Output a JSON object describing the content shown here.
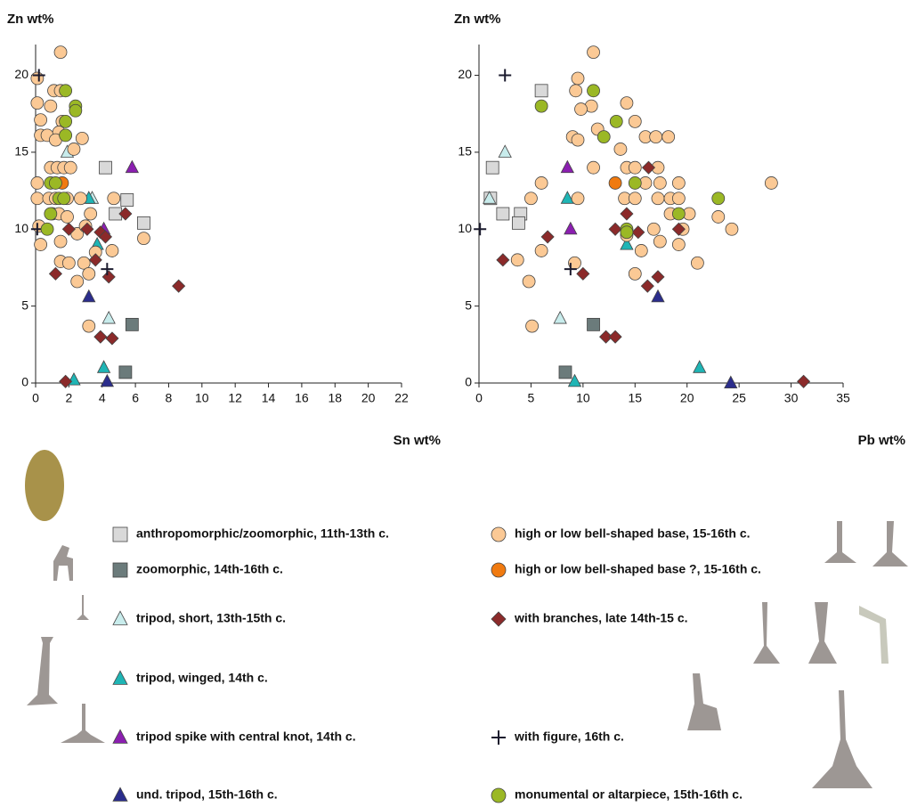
{
  "chart_data": [
    {
      "type": "scatter",
      "x_label": "Sn wt%",
      "y_label": "Zn wt%",
      "xlim": [
        0,
        22
      ],
      "ylim": [
        0,
        22
      ],
      "xticks": [
        0,
        2,
        4,
        6,
        8,
        10,
        12,
        14,
        16,
        18,
        20,
        22
      ],
      "yticks": [
        0,
        5,
        10,
        15,
        20
      ],
      "series": [
        {
          "name": "anthropomorphic/zoomorphic, 11th-13th c.",
          "color": "#d9d9d9",
          "marker": "square",
          "x": [
            4.2,
            5.5,
            4.8,
            6.5
          ],
          "values": [
            14,
            11.9,
            11,
            10.4
          ]
        },
        {
          "name": "zoomorphic, 14th-16th c.",
          "color": "#6b7b7b",
          "marker": "square",
          "x": [
            5.8,
            5.4
          ],
          "values": [
            3.8,
            0.7
          ]
        },
        {
          "name": "tripod, short, 13th-15th c.",
          "color": "#c8ecec",
          "marker": "triangle",
          "x": [
            1.9,
            3.4,
            4.4
          ],
          "values": [
            15,
            12,
            4.2
          ]
        },
        {
          "name": "tripod, winged, 14th c.",
          "color": "#1fb5b5",
          "marker": "triangle",
          "x": [
            3.2,
            3.7,
            4.1,
            2.3
          ],
          "values": [
            12,
            9,
            1,
            0.2
          ]
        },
        {
          "name": "tripod spike with central knot, 14th c.",
          "color": "#8b1fb0",
          "marker": "triangle",
          "x": [
            5.8,
            4.1
          ],
          "values": [
            14,
            10
          ]
        },
        {
          "name": "und. tripod, 15th-16th c.",
          "color": "#2b2d8c",
          "marker": "triangle",
          "x": [
            3.2,
            4.3
          ],
          "values": [
            5.6,
            0.1
          ]
        },
        {
          "name": "high or low bell-shaped base, 15-16th c.",
          "color": "#fbc995",
          "marker": "circle",
          "x": [
            0.1,
            0.1,
            0.3,
            0.3,
            0.1,
            0.1,
            0.2,
            0.3,
            0.7,
            0.9,
            1.1,
            1.5,
            1.5,
            1.6,
            1.4,
            1.2,
            0.9,
            1.3,
            1.7,
            2.1,
            2.3,
            2.8,
            0.8,
            1.2,
            1.9,
            2.7,
            1.0,
            1.4,
            1.9,
            3.3,
            1.5,
            2.5,
            1.5,
            2.0,
            2.9,
            2.5,
            3.2,
            3.6,
            3.2,
            4.7,
            4.6,
            6.5,
            3.0
          ],
          "values": [
            19.8,
            18.2,
            17.1,
            16.1,
            13,
            12,
            10.2,
            9,
            16.1,
            18,
            19,
            19,
            21.5,
            17,
            16.3,
            15.8,
            14,
            14,
            14,
            14,
            15.2,
            15.9,
            12,
            12,
            12,
            12,
            11,
            11,
            10.8,
            11,
            9.2,
            9.7,
            7.9,
            7.8,
            7.8,
            6.6,
            7.1,
            8.5,
            3.7,
            12,
            8.6,
            9.4,
            10.2
          ]
        },
        {
          "name": "high or low bell-shaped base ?, 15-16th c.",
          "color": "#f07a10",
          "marker": "circle",
          "x": [
            1.6
          ],
          "values": [
            13
          ]
        },
        {
          "name": "with branches, late 14th-15 c.",
          "color": "#8b2a2a",
          "marker": "diamond",
          "x": [
            1.2,
            2.0,
            3.1,
            3.6,
            3.9,
            4.2,
            4.4,
            5.4,
            8.6,
            3.9,
            4.6,
            1.8
          ],
          "values": [
            7.1,
            10,
            10,
            8,
            9.8,
            9.5,
            6.9,
            11,
            6.3,
            3,
            2.9,
            0.1
          ]
        },
        {
          "name": "with figure, 16th c.",
          "color": "#1b1b2e",
          "marker": "cross",
          "x": [
            0.2,
            4.3,
            0.1
          ],
          "values": [
            20,
            7.4,
            10
          ]
        },
        {
          "name": "monumental or altarpiece, 15th-16th c.",
          "color": "#9bb825",
          "marker": "circle",
          "x": [
            1.8,
            2.4,
            2.4,
            1.8,
            1.8,
            0.9,
            1.2,
            1.4,
            1.7,
            0.9,
            0.7
          ],
          "values": [
            19,
            18,
            17.7,
            17,
            16.1,
            13,
            13,
            12,
            12,
            11,
            10
          ]
        }
      ]
    },
    {
      "type": "scatter",
      "x_label": "Pb wt%",
      "y_label": "Zn wt%",
      "xlim": [
        0,
        35
      ],
      "ylim": [
        0,
        22
      ],
      "xticks": [
        0,
        5,
        10,
        15,
        20,
        25,
        30,
        35
      ],
      "yticks": [
        0,
        5,
        10,
        15,
        20
      ],
      "series": [
        {
          "color": "#d9d9d9",
          "marker": "square",
          "x": [
            6,
            1.3,
            2.3,
            4,
            3.8,
            1.1
          ],
          "values": [
            19,
            14,
            11,
            11,
            10.4,
            12
          ]
        },
        {
          "color": "#6b7b7b",
          "marker": "square",
          "x": [
            11,
            8.3
          ],
          "values": [
            3.8,
            0.7
          ]
        },
        {
          "color": "#c8ecec",
          "marker": "triangle",
          "x": [
            2.5,
            1,
            7.8
          ],
          "values": [
            15,
            12,
            4.2
          ]
        },
        {
          "color": "#1fb5b5",
          "marker": "triangle",
          "x": [
            8.5,
            14.2,
            21.2,
            9.2
          ],
          "values": [
            12,
            9,
            1,
            0.1
          ]
        },
        {
          "color": "#8b1fb0",
          "marker": "triangle",
          "x": [
            8.5,
            8.8
          ],
          "values": [
            14,
            10
          ]
        },
        {
          "color": "#2b2d8c",
          "marker": "triangle",
          "x": [
            17.2,
            24.2
          ],
          "values": [
            5.6,
            0
          ]
        },
        {
          "color": "#fbc995",
          "marker": "circle",
          "x": [
            11,
            9.5,
            9.3,
            10.8,
            9.8,
            14.2,
            15,
            9,
            9.5,
            11.4,
            13.6,
            16,
            17,
            18.2,
            6,
            5,
            9.5,
            11,
            14.2,
            15,
            17.2,
            16,
            17.4,
            19.2,
            14,
            15,
            17.2,
            18.4,
            19.2,
            18.4,
            20.2,
            23,
            16.8,
            19.6,
            24.3,
            14.2,
            15.6,
            17.4,
            19.2,
            6,
            3.7,
            9.2,
            4.8,
            15,
            21,
            5.1,
            28.1
          ],
          "values": [
            21.5,
            19.8,
            19,
            18,
            17.8,
            18.2,
            17,
            16,
            15.8,
            16.5,
            15.2,
            16,
            16,
            16,
            13,
            12,
            12,
            14,
            14,
            14,
            14,
            13,
            13,
            13,
            12,
            12,
            12,
            12,
            12,
            11,
            11,
            10.8,
            10,
            10,
            10,
            9.6,
            8.6,
            9.2,
            9,
            8.6,
            8,
            7.8,
            6.6,
            7.1,
            7.8,
            3.7,
            13
          ]
        },
        {
          "color": "#f07a10",
          "marker": "circle",
          "x": [
            13.1
          ],
          "values": [
            13
          ]
        },
        {
          "color": "#8b2a2a",
          "marker": "diamond",
          "x": [
            2.3,
            6.6,
            10,
            13.1,
            14.2,
            14.2,
            16.3,
            15.3,
            16.2,
            17.2,
            19.2,
            12.2,
            13.1,
            31.2
          ],
          "values": [
            8,
            9.5,
            7.1,
            10,
            10,
            11,
            14,
            9.8,
            6.3,
            6.9,
            10,
            3,
            3,
            0.1
          ]
        },
        {
          "color": "#1b1b2e",
          "marker": "cross",
          "x": [
            2.5,
            8.8,
            0.1
          ],
          "values": [
            20,
            7.4,
            10
          ]
        },
        {
          "color": "#9bb825",
          "marker": "circle",
          "x": [
            6,
            11,
            12,
            13.2,
            14.2,
            14.2,
            15,
            19.2,
            23
          ],
          "values": [
            18,
            19,
            16,
            17,
            10,
            9.8,
            13,
            11,
            12
          ]
        }
      ]
    }
  ]
}
